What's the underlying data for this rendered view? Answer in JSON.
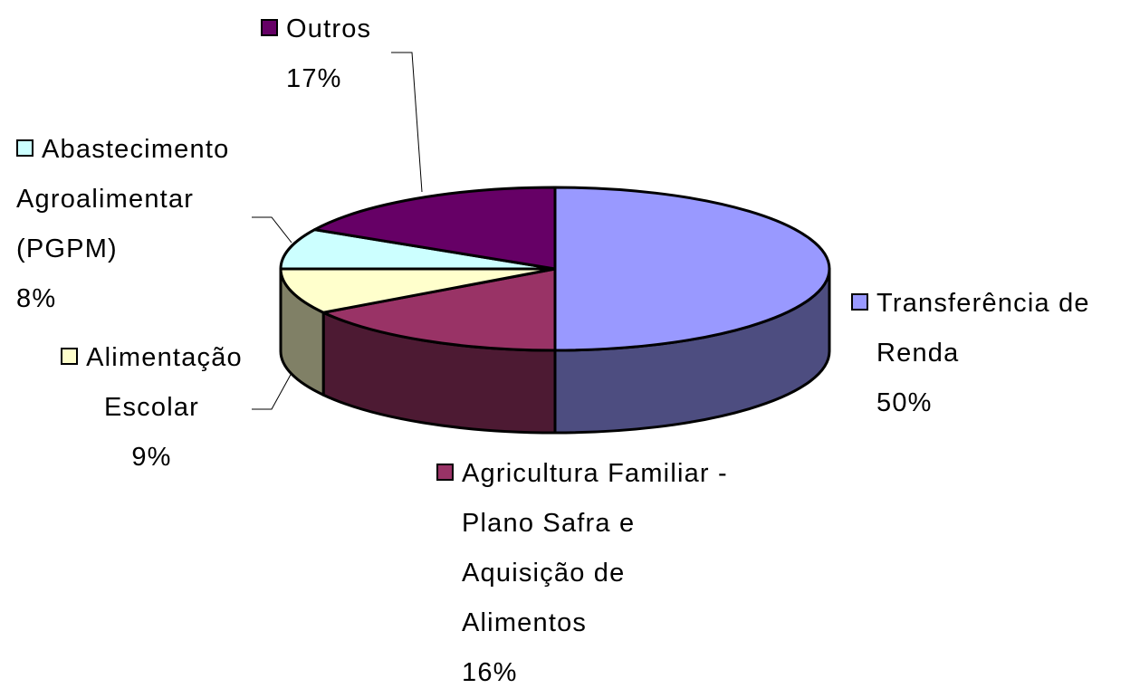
{
  "chart_data": {
    "type": "pie3d",
    "categories": [
      "Transferência de Renda",
      "Agricultura Familiar - Plano Safra e Aquisição de Alimentos",
      "Alimentação Escolar",
      "Abastecimento Agroalimentar (PGPM)",
      "Outros"
    ],
    "values": [
      50,
      16,
      9,
      8,
      17
    ],
    "value_labels": [
      "50%",
      "16%",
      "9%",
      "8%",
      "17%"
    ],
    "colors": [
      "#9999ff",
      "#993366",
      "#ffffcc",
      "#ccffff",
      "#660066"
    ]
  }
}
